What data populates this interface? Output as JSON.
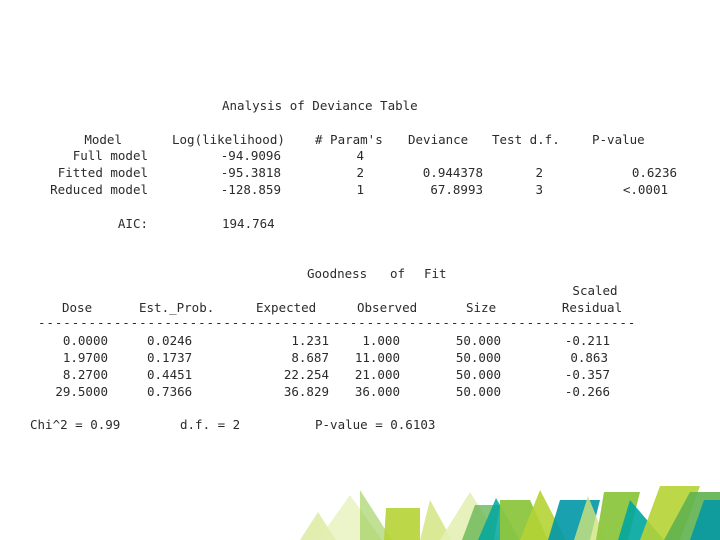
{
  "deviance": {
    "title": "Analysis of Deviance Table",
    "headers": {
      "model": "Model",
      "loglik": "Log(likelihood)",
      "params": "# Param's",
      "deviance": "Deviance",
      "testdf": "Test d.f.",
      "pvalue": "P-value"
    },
    "rows": [
      {
        "model": "Full model",
        "loglik": "-94.9096",
        "params": "4",
        "deviance": "",
        "testdf": "",
        "pvalue": ""
      },
      {
        "model": "Fitted model",
        "loglik": "-95.3818",
        "params": "2",
        "deviance": "0.944378",
        "testdf": "2",
        "pvalue": "0.6236"
      },
      {
        "model": "Reduced model",
        "loglik": "-128.859",
        "params": "1",
        "deviance": "67.8993",
        "testdf": "3",
        "pvalue": "<.0001"
      }
    ],
    "aic_label": "AIC:",
    "aic_value": "194.764"
  },
  "goodness": {
    "title_words": [
      "Goodness",
      "of",
      "Fit"
    ],
    "headers": {
      "dose": "Dose",
      "est_prob": "Est._Prob.",
      "expected": "Expected",
      "observed": "Observed",
      "size": "Size",
      "scaled": "Scaled",
      "residual": "Residual"
    },
    "rule": "-----------------------------------------------------------------------",
    "rows": [
      {
        "dose": "0.0000",
        "est_prob": "0.0246",
        "expected": "1.231",
        "observed": "1.000",
        "size": "50.000",
        "residual": "-0.211"
      },
      {
        "dose": "1.9700",
        "est_prob": "0.1737",
        "expected": "8.687",
        "observed": "11.000",
        "size": "50.000",
        "residual": "0.863"
      },
      {
        "dose": "8.2700",
        "est_prob": "0.4451",
        "expected": "22.254",
        "observed": "21.000",
        "size": "50.000",
        "residual": "-0.357"
      },
      {
        "dose": "29.5000",
        "est_prob": "0.7366",
        "expected": "36.829",
        "observed": "36.000",
        "size": "50.000",
        "residual": "-0.266"
      }
    ],
    "chi_label": "Chi^2 = 0.99",
    "df_label": "d.f. = 2",
    "p_label": "P-value = 0.6103"
  },
  "decoration": {
    "colors": [
      "#8dc63f",
      "#b5d334",
      "#5fb14f",
      "#00a6a0",
      "#0097a7",
      "#cfe37a",
      "#e4efb4"
    ]
  }
}
